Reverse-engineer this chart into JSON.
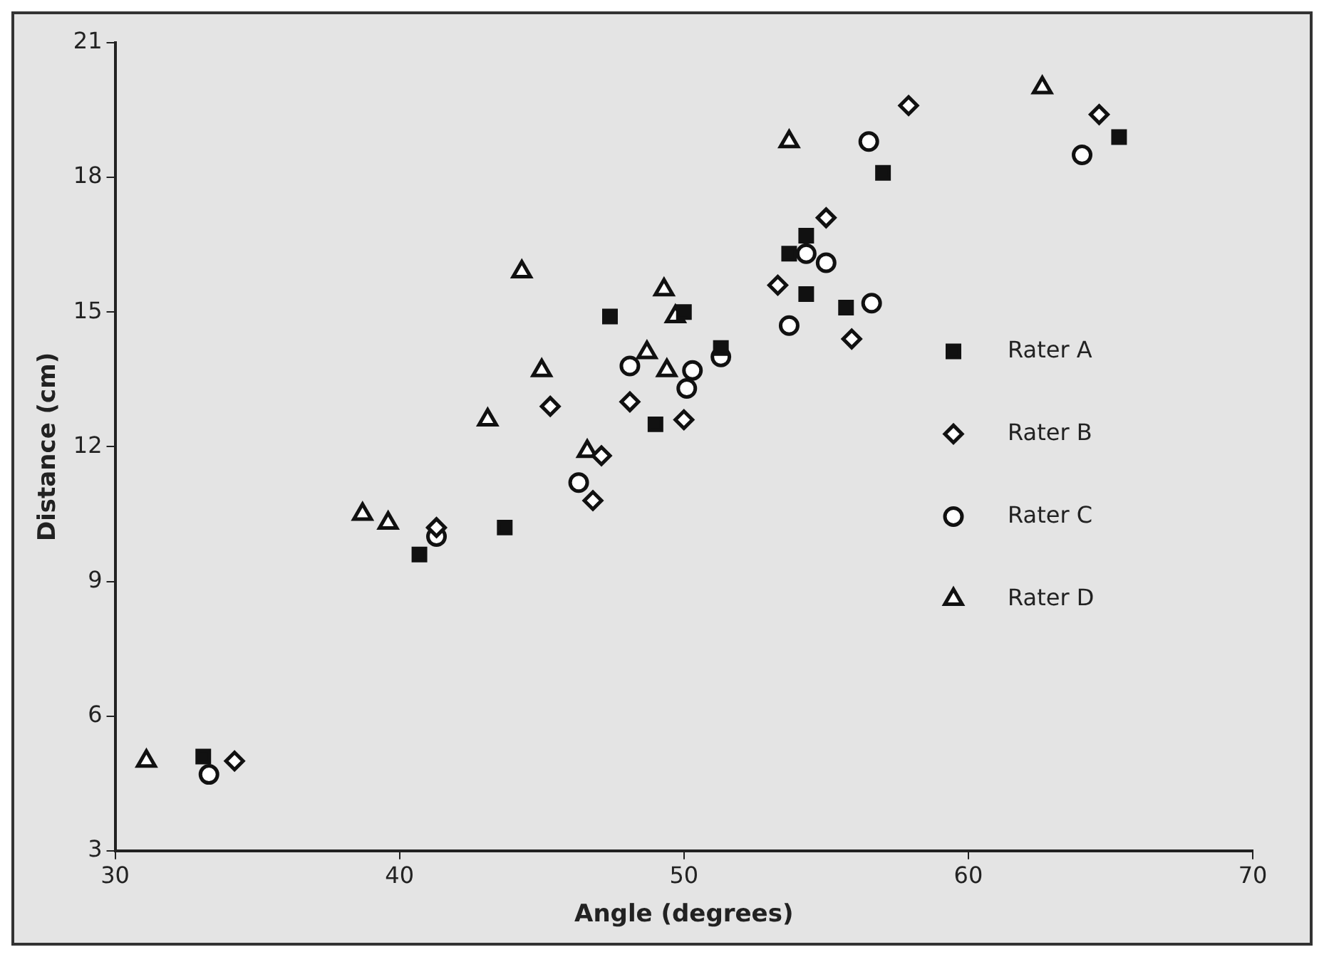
{
  "chart_data": {
    "type": "scatter",
    "xlabel": "Angle (degrees)",
    "ylabel": "Distance (cm)",
    "xlim": [
      30,
      70
    ],
    "xticks": [
      30,
      40,
      50,
      60,
      70
    ],
    "ylim": [
      3,
      21
    ],
    "yticks": [
      3,
      6,
      9,
      12,
      15,
      18,
      21
    ],
    "grid": false,
    "legend": "right",
    "series": [
      {
        "name": "Rater A",
        "color": "#111111",
        "marker": "square",
        "x": [
          33.1,
          40.7,
          43.7,
          47.4,
          50.0,
          49.0,
          51.3,
          54.3,
          53.7,
          54.3,
          55.7,
          57.0,
          65.3
        ],
        "values": [
          5.1,
          9.6,
          10.2,
          14.9,
          15.0,
          12.5,
          14.2,
          16.7,
          16.3,
          15.4,
          15.1,
          18.1,
          18.9
        ]
      },
      {
        "name": "Rater B",
        "color": "#111111",
        "marker": "diamond",
        "x": [
          34.2,
          41.3,
          45.3,
          48.1,
          50.0,
          47.1,
          46.8,
          55.0,
          53.3,
          55.9,
          57.9,
          64.6
        ],
        "values": [
          5.0,
          10.2,
          12.9,
          13.0,
          12.6,
          11.8,
          10.8,
          17.1,
          15.6,
          14.4,
          19.6,
          19.4
        ]
      },
      {
        "name": "Rater C",
        "color": "#111111",
        "marker": "circle",
        "x": [
          33.3,
          41.3,
          48.1,
          50.3,
          50.1,
          51.3,
          46.3,
          54.3,
          55.0,
          56.6,
          53.7,
          56.5,
          64.0
        ],
        "values": [
          4.7,
          10.0,
          13.8,
          13.7,
          13.3,
          14.0,
          11.2,
          16.3,
          16.1,
          15.2,
          14.7,
          18.8,
          18.5
        ]
      },
      {
        "name": "Rater D",
        "color": "#111111",
        "marker": "triangle",
        "x": [
          31.1,
          38.7,
          39.6,
          43.1,
          44.3,
          45.0,
          49.3,
          49.7,
          48.7,
          49.4,
          46.6,
          53.7,
          62.6
        ],
        "values": [
          5.0,
          10.5,
          10.3,
          12.6,
          15.9,
          13.7,
          15.5,
          14.9,
          14.1,
          13.7,
          11.9,
          18.8,
          20.0
        ]
      }
    ]
  }
}
